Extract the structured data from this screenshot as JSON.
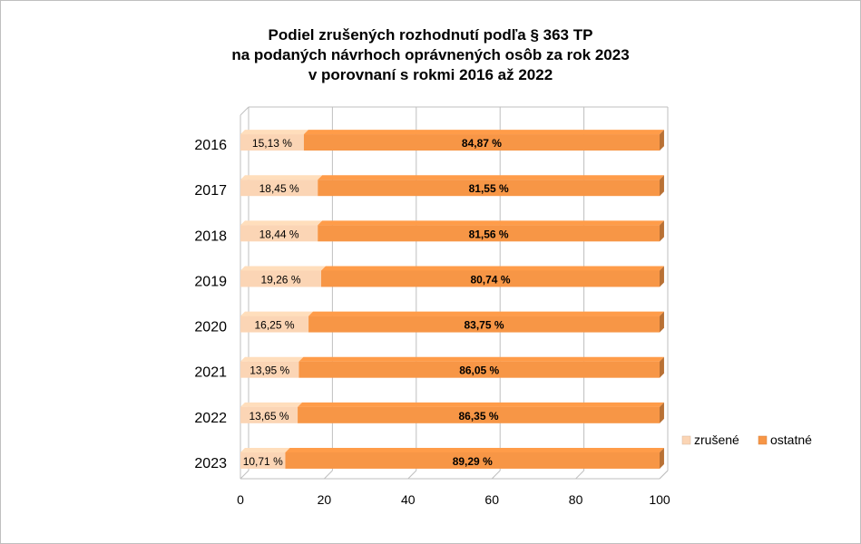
{
  "title_lines": [
    "Podiel zrušených rozhodnutí podľa § 363 TP",
    "na podaných návrhoch oprávnených osôb za rok 2023",
    "v porovnaní s rokmi 2016 až 2022"
  ],
  "chart_data": {
    "type": "bar",
    "orientation": "horizontal",
    "stacked": true,
    "title": "Podiel zrušených rozhodnutí podľa § 363 TP na podaných návrhoch oprávnených osôb za rok 2023 v porovnaní s rokmi 2016 až 2022",
    "categories": [
      "2016",
      "2017",
      "2018",
      "2019",
      "2020",
      "2021",
      "2022",
      "2023"
    ],
    "series": [
      {
        "name": "zrušené",
        "color": "#fbd5b5",
        "values": [
          15.13,
          18.45,
          18.44,
          19.26,
          16.25,
          13.95,
          13.65,
          10.71
        ],
        "labels": [
          "15,13 %",
          "18,45 %",
          "18,44 %",
          "19,26 %",
          "16,25 %",
          "13,95 %",
          "13,65 %",
          "10,71 %"
        ]
      },
      {
        "name": "ostatné",
        "color": "#f79646",
        "values": [
          84.87,
          81.55,
          81.56,
          80.74,
          83.75,
          86.05,
          86.35,
          89.29
        ],
        "labels": [
          "84,87 %",
          "81,55 %",
          "81,56 %",
          "80,74 %",
          "83,75 %",
          "86,05 %",
          "86,35 %",
          "89,29 %"
        ]
      }
    ],
    "xlim": [
      0,
      100
    ],
    "xticks": [
      "0",
      "20",
      "40",
      "60",
      "80",
      "100"
    ],
    "grid": true,
    "legend_position": "right"
  }
}
